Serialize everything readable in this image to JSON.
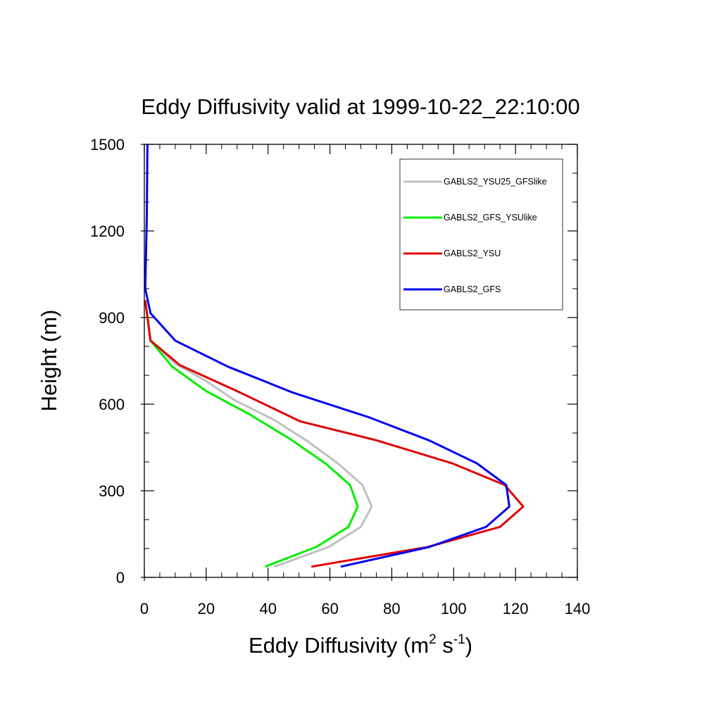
{
  "chart_data": {
    "type": "line",
    "title": "Eddy Diffusivity valid at 1999-10-22_22:10:00",
    "xlabel": "Eddy Diffusivity (m",
    "xlabel_sup1": "2",
    "xlabel_mid": " s",
    "xlabel_sup2": "-1",
    "xlabel_end": ")",
    "ylabel": "Height (m)",
    "xlim": [
      0,
      140
    ],
    "ylim": [
      0,
      1500
    ],
    "xticks": [
      0,
      20,
      40,
      60,
      80,
      100,
      120,
      140
    ],
    "yticks": [
      0,
      300,
      600,
      900,
      1200,
      1500
    ],
    "xtick_labels": [
      "0",
      "20",
      "40",
      "60",
      "80",
      "100",
      "120",
      "140"
    ],
    "ytick_labels": [
      "0",
      "300",
      "600",
      "900",
      "1200",
      "1500"
    ],
    "legend_position": "top-right",
    "grid": false,
    "series": [
      {
        "name": "GABLS2_YSU25_GFSlike",
        "color": "#c0c0c0",
        "x": [
          42,
          59.5,
          70,
          73.5,
          70.5,
          62.5,
          53,
          42,
          29,
          20,
          10,
          2,
          0.3
        ],
        "y": [
          37,
          105,
          175,
          245,
          320,
          395,
          470,
          545,
          615,
          680,
          740,
          820,
          960
        ]
      },
      {
        "name": "GABLS2_GFS_YSUlike",
        "color": "#00ee00",
        "x": [
          39,
          55.5,
          66,
          69,
          66.5,
          58.5,
          47,
          34,
          20,
          9,
          2,
          0.3
        ],
        "y": [
          37,
          105,
          175,
          245,
          320,
          395,
          480,
          565,
          645,
          730,
          820,
          960
        ]
      },
      {
        "name": "GABLS2_YSU",
        "color": "#e00000",
        "x": [
          54,
          91.5,
          115,
          122.5,
          116.5,
          99.5,
          75,
          50.5,
          30,
          11.5,
          2,
          0.3
        ],
        "y": [
          37,
          105,
          175,
          245,
          320,
          395,
          475,
          540,
          645,
          735,
          820,
          960
        ]
      },
      {
        "name": "GABLS2_GFS",
        "color": "#0000ee",
        "x": [
          63.5,
          92,
          110.5,
          118,
          117,
          107.5,
          92,
          72.5,
          48,
          27,
          10,
          2,
          0.3,
          0.5,
          0.8,
          1
        ],
        "y": [
          37,
          105,
          175,
          245,
          320,
          395,
          475,
          555,
          640,
          730,
          820,
          915,
          1000,
          1100,
          1250,
          1500
        ]
      }
    ]
  }
}
